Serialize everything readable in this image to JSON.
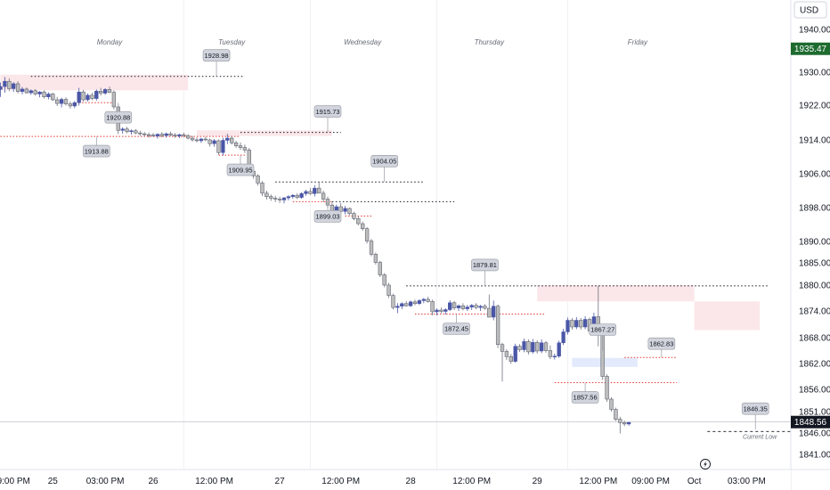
{
  "currency": "USD",
  "colors": {
    "bull": "#4a56a6",
    "bear": "#bdbdbd",
    "red": "#e53935",
    "zone": "#fbe7ea",
    "zoneBlue": "#e3eafc",
    "accent": "#1e6b2f",
    "axisBg": "#ffffff"
  },
  "icons": {
    "flash": "lightning-icon"
  },
  "chart_data": {
    "type": "candlestick",
    "currency": "USD",
    "last_price": "1848.56",
    "session_high_price": "1935.47",
    "y_range": [
      1839,
      1944
    ],
    "y_ticks": [
      "1940.00",
      "1930.00",
      "1922.00",
      "1914.00",
      "1906.00",
      "1898.00",
      "1890.00",
      "1885.00",
      "1880.00",
      "1874.00",
      "1868.00",
      "1862.00",
      "1856.00",
      "1851.00",
      "1846.00",
      "1841.00"
    ],
    "x_ticks": [
      {
        "t": 3,
        "label": "9:00 PM"
      },
      {
        "t": 12,
        "label": "25"
      },
      {
        "t": 24,
        "label": "03:00 PM"
      },
      {
        "t": 35,
        "label": "26"
      },
      {
        "t": 49,
        "label": "12:00 PM"
      },
      {
        "t": 64,
        "label": "27"
      },
      {
        "t": 78,
        "label": "12:00 PM"
      },
      {
        "t": 94,
        "label": "28"
      },
      {
        "t": 108,
        "label": "12:00 PM"
      },
      {
        "t": 123,
        "label": "29"
      },
      {
        "t": 137,
        "label": "12:00 PM"
      },
      {
        "t": 149,
        "label": "09:00 PM"
      },
      {
        "t": 159,
        "label": "Oct"
      },
      {
        "t": 171,
        "label": "03:00 PM"
      }
    ],
    "day_labels": [
      {
        "t": 25,
        "label": "Monday"
      },
      {
        "t": 53,
        "label": "Tuesday"
      },
      {
        "t": 83,
        "label": "Wednesday"
      },
      {
        "t": 112,
        "label": "Thursday"
      },
      {
        "t": 146,
        "label": "Friday"
      }
    ],
    "candles": [
      [
        1925.8,
        1927.5,
        1924.0,
        1926.5
      ],
      [
        1926.5,
        1928.8,
        1925.0,
        1927.8
      ],
      [
        1927.8,
        1928.5,
        1925.4,
        1926.0
      ],
      [
        1926.0,
        1927.6,
        1925.2,
        1927.2
      ],
      [
        1927.2,
        1927.8,
        1924.8,
        1925.3
      ],
      [
        1925.3,
        1926.4,
        1924.6,
        1925.9
      ],
      [
        1925.9,
        1926.3,
        1924.8,
        1925.0
      ],
      [
        1925.0,
        1925.8,
        1924.5,
        1925.5
      ],
      [
        1925.5,
        1925.9,
        1924.3,
        1924.7
      ],
      [
        1924.7,
        1925.4,
        1923.9,
        1925.2
      ],
      [
        1925.2,
        1925.6,
        1923.6,
        1924.0
      ],
      [
        1924.0,
        1925.1,
        1923.4,
        1924.7
      ],
      [
        1924.7,
        1925.0,
        1923.0,
        1923.3
      ],
      [
        1923.3,
        1924.0,
        1921.8,
        1922.4
      ],
      [
        1922.4,
        1923.8,
        1921.5,
        1923.4
      ],
      [
        1923.4,
        1923.9,
        1921.9,
        1922.3
      ],
      [
        1922.3,
        1922.9,
        1921.2,
        1921.8
      ],
      [
        1921.8,
        1923.0,
        1921.3,
        1922.6
      ],
      [
        1922.6,
        1926.2,
        1921.9,
        1925.2
      ],
      [
        1925.2,
        1925.7,
        1922.9,
        1923.3
      ],
      [
        1923.3,
        1924.8,
        1922.9,
        1924.4
      ],
      [
        1924.4,
        1925.0,
        1923.2,
        1923.6
      ],
      [
        1923.6,
        1925.8,
        1923.1,
        1925.4
      ],
      [
        1925.4,
        1926.2,
        1924.3,
        1924.9
      ],
      [
        1924.9,
        1926.1,
        1924.5,
        1925.8
      ],
      [
        1925.8,
        1926.5,
        1924.9,
        1925.1
      ],
      [
        1925.1,
        1925.6,
        1921.0,
        1921.6
      ],
      [
        1921.6,
        1922.2,
        1915.3,
        1916.2
      ],
      [
        1916.2,
        1916.9,
        1915.4,
        1916.5
      ],
      [
        1916.5,
        1917.0,
        1915.5,
        1915.9
      ],
      [
        1915.9,
        1916.4,
        1915.2,
        1916.1
      ],
      [
        1916.1,
        1916.5,
        1915.3,
        1915.6
      ],
      [
        1915.6,
        1916.1,
        1914.9,
        1915.4
      ],
      [
        1915.4,
        1915.8,
        1914.8,
        1915.2
      ],
      [
        1915.2,
        1915.7,
        1914.5,
        1915.1
      ],
      [
        1915.1,
        1915.6,
        1914.7,
        1914.9
      ],
      [
        1914.9,
        1915.5,
        1914.3,
        1915.3
      ],
      [
        1915.3,
        1915.8,
        1914.6,
        1915.0
      ],
      [
        1915.0,
        1915.7,
        1914.5,
        1915.4
      ],
      [
        1915.4,
        1915.9,
        1914.8,
        1915.1
      ],
      [
        1915.1,
        1915.6,
        1914.5,
        1914.9
      ],
      [
        1914.9,
        1915.4,
        1914.4,
        1915.2
      ],
      [
        1915.2,
        1915.7,
        1914.6,
        1915.0
      ],
      [
        1915.0,
        1915.3,
        1914.1,
        1914.4
      ],
      [
        1914.4,
        1914.9,
        1913.6,
        1914.0
      ],
      [
        1914.0,
        1914.6,
        1913.4,
        1913.8
      ],
      [
        1913.8,
        1914.5,
        1913.3,
        1914.2
      ],
      [
        1914.2,
        1914.7,
        1913.7,
        1914.0
      ],
      [
        1914.0,
        1914.3,
        1912.4,
        1913.1
      ],
      [
        1913.1,
        1914.2,
        1912.4,
        1913.8
      ],
      [
        1913.8,
        1914.1,
        1910.5,
        1911.0
      ],
      [
        1911.0,
        1914.5,
        1910.3,
        1913.9
      ],
      [
        1913.9,
        1915.4,
        1913.0,
        1914.4
      ],
      [
        1914.4,
        1914.9,
        1912.9,
        1913.3
      ],
      [
        1913.3,
        1913.8,
        1912.1,
        1912.6
      ],
      [
        1912.6,
        1913.4,
        1911.6,
        1912.2
      ],
      [
        1912.2,
        1912.9,
        1910.9,
        1911.6
      ],
      [
        1911.6,
        1912.1,
        1905.7,
        1906.6
      ],
      [
        1906.6,
        1907.1,
        1904.8,
        1905.5
      ],
      [
        1905.5,
        1905.9,
        1903.2,
        1903.8
      ],
      [
        1903.8,
        1904.3,
        1900.7,
        1901.4
      ],
      [
        1901.4,
        1902.0,
        1899.9,
        1900.6
      ],
      [
        1900.6,
        1901.1,
        1899.6,
        1900.2
      ],
      [
        1900.2,
        1900.8,
        1899.3,
        1900.0
      ],
      [
        1900.0,
        1900.6,
        1899.1,
        1899.8
      ],
      [
        1899.8,
        1900.5,
        1899.0,
        1900.3
      ],
      [
        1900.3,
        1900.9,
        1899.7,
        1900.6
      ],
      [
        1900.6,
        1901.2,
        1900.1,
        1900.9
      ],
      [
        1900.9,
        1901.4,
        1900.0,
        1900.4
      ],
      [
        1900.4,
        1901.6,
        1900.1,
        1901.3
      ],
      [
        1901.3,
        1902.2,
        1900.8,
        1901.8
      ],
      [
        1901.8,
        1902.6,
        1901.0,
        1901.3
      ],
      [
        1901.3,
        1903.3,
        1900.6,
        1902.6
      ],
      [
        1902.6,
        1904.0,
        1901.9,
        1901.4
      ],
      [
        1901.4,
        1902.0,
        1899.3,
        1900.0
      ],
      [
        1900.0,
        1900.6,
        1898.0,
        1898.6
      ],
      [
        1898.6,
        1899.2,
        1896.3,
        1897.0
      ],
      [
        1897.0,
        1898.7,
        1896.5,
        1898.2
      ],
      [
        1898.2,
        1899.1,
        1896.6,
        1897.1
      ],
      [
        1897.1,
        1898.4,
        1896.4,
        1897.8
      ],
      [
        1897.8,
        1898.0,
        1896.2,
        1896.6
      ],
      [
        1896.6,
        1897.0,
        1895.0,
        1895.4
      ],
      [
        1895.4,
        1895.9,
        1893.8,
        1894.2
      ],
      [
        1894.2,
        1894.7,
        1892.5,
        1893.0
      ],
      [
        1893.0,
        1893.4,
        1889.5,
        1890.1
      ],
      [
        1890.1,
        1890.6,
        1886.5,
        1887.0
      ],
      [
        1887.0,
        1887.4,
        1884.6,
        1885.1
      ],
      [
        1885.1,
        1885.5,
        1881.8,
        1882.3
      ],
      [
        1882.3,
        1882.7,
        1879.5,
        1880.0
      ],
      [
        1880.0,
        1880.5,
        1877.0,
        1877.6
      ],
      [
        1877.6,
        1878.0,
        1874.3,
        1874.8
      ],
      [
        1874.8,
        1875.8,
        1873.5,
        1875.1
      ],
      [
        1875.1,
        1876.0,
        1874.4,
        1875.7
      ],
      [
        1875.7,
        1876.3,
        1875.0,
        1875.2
      ],
      [
        1875.2,
        1876.4,
        1874.9,
        1876.1
      ],
      [
        1876.1,
        1876.6,
        1875.3,
        1875.7
      ],
      [
        1875.7,
        1876.7,
        1875.4,
        1876.4
      ],
      [
        1876.4,
        1877.0,
        1875.8,
        1876.7
      ],
      [
        1876.7,
        1877.3,
        1875.9,
        1876.2
      ],
      [
        1876.2,
        1876.6,
        1873.0,
        1873.8
      ],
      [
        1873.8,
        1874.6,
        1873.0,
        1874.2
      ],
      [
        1874.2,
        1874.8,
        1873.5,
        1873.9
      ],
      [
        1873.9,
        1874.6,
        1873.2,
        1874.3
      ],
      [
        1874.3,
        1876.5,
        1874.0,
        1875.9
      ],
      [
        1875.9,
        1876.3,
        1874.2,
        1874.7
      ],
      [
        1874.7,
        1875.5,
        1874.0,
        1875.2
      ],
      [
        1875.2,
        1875.8,
        1874.1,
        1874.5
      ],
      [
        1874.5,
        1875.4,
        1874.0,
        1874.9
      ],
      [
        1874.9,
        1875.6,
        1874.2,
        1875.3
      ],
      [
        1875.3,
        1875.8,
        1874.4,
        1874.8
      ],
      [
        1874.8,
        1875.4,
        1874.0,
        1875.1
      ],
      [
        1875.1,
        1875.6,
        1874.3,
        1874.6
      ],
      [
        1874.6,
        1877.8,
        1873.0,
        1872.6
      ],
      [
        1872.6,
        1876.4,
        1871.9,
        1875.1
      ],
      [
        1875.1,
        1875.5,
        1865.6,
        1866.4
      ],
      [
        1866.4,
        1866.8,
        1857.8,
        1864.8
      ],
      [
        1864.8,
        1865.3,
        1862.8,
        1863.6
      ],
      [
        1863.6,
        1864.2,
        1861.9,
        1862.5
      ],
      [
        1862.5,
        1866.6,
        1862.2,
        1866.0
      ],
      [
        1866.0,
        1866.5,
        1864.7,
        1865.2
      ],
      [
        1865.2,
        1867.8,
        1864.6,
        1867.1
      ],
      [
        1867.1,
        1867.6,
        1864.1,
        1864.7
      ],
      [
        1864.7,
        1867.7,
        1864.3,
        1866.9
      ],
      [
        1866.9,
        1867.4,
        1864.3,
        1864.9
      ],
      [
        1864.9,
        1867.6,
        1864.4,
        1866.8
      ],
      [
        1866.8,
        1867.2,
        1864.5,
        1865.0
      ],
      [
        1865.0,
        1866.2,
        1863.0,
        1863.6
      ],
      [
        1863.6,
        1864.3,
        1862.9,
        1863.7
      ],
      [
        1863.7,
        1867.3,
        1863.3,
        1866.8
      ],
      [
        1866.8,
        1870.0,
        1866.3,
        1869.3
      ],
      [
        1869.3,
        1872.5,
        1868.7,
        1871.9
      ],
      [
        1871.9,
        1872.4,
        1869.8,
        1870.4
      ],
      [
        1870.4,
        1872.6,
        1869.9,
        1871.9
      ],
      [
        1871.9,
        1872.4,
        1869.8,
        1870.4
      ],
      [
        1870.4,
        1872.8,
        1869.9,
        1872.1
      ],
      [
        1872.1,
        1872.5,
        1869.1,
        1869.5
      ],
      [
        1869.5,
        1873.6,
        1869.0,
        1872.7
      ],
      [
        1872.7,
        1879.8,
        1866.0,
        1870.4
      ],
      [
        1870.4,
        1870.9,
        1858.2,
        1859.0
      ],
      [
        1859.0,
        1859.5,
        1853.2,
        1853.8
      ],
      [
        1853.8,
        1854.2,
        1851.0,
        1851.5
      ],
      [
        1851.5,
        1851.9,
        1848.8,
        1849.2
      ],
      [
        1849.2,
        1849.8,
        1845.9,
        1848.4
      ],
      [
        1848.4,
        1848.9,
        1847.6,
        1848.1
      ],
      [
        1848.1,
        1848.7,
        1847.7,
        1848.56
      ]
    ],
    "horizontal_levels": [
      {
        "price": 1928.98,
        "style": "dotted",
        "t0": 7,
        "t1": 56
      },
      {
        "price": 1922.6,
        "style": "red",
        "t0": 18,
        "t1": 26
      },
      {
        "price": 1914.8,
        "style": "red",
        "t0": 0,
        "t1": 55
      },
      {
        "price": 1915.73,
        "style": "dotted",
        "t0": 55,
        "t1": 78
      },
      {
        "price": 1910.4,
        "style": "red",
        "t0": 50,
        "t1": 56
      },
      {
        "price": 1904.05,
        "style": "dotted",
        "t0": 63,
        "t1": 97
      },
      {
        "price": 1899.4,
        "style": "red",
        "t0": 67,
        "t1": 76
      },
      {
        "price": 1899.4,
        "style": "dotted",
        "t0": 76,
        "t1": 104
      },
      {
        "price": 1896.0,
        "style": "red",
        "t0": 79,
        "t1": 85
      },
      {
        "price": 1879.81,
        "style": "dotted",
        "t0": 93,
        "t1": 176
      },
      {
        "price": 1873.3,
        "style": "red",
        "t0": 95,
        "t1": 125
      },
      {
        "price": 1863.4,
        "style": "red",
        "t0": 143,
        "t1": 155
      },
      {
        "price": 1857.56,
        "style": "red",
        "t0": 127,
        "t1": 155
      },
      {
        "price": 1846.35,
        "style": "dashed",
        "t0": 162,
        "t1": 183
      }
    ],
    "zones": [
      {
        "t0": 0,
        "t1": 43,
        "p_top": 1929.4,
        "p_bot": 1925.6,
        "color": "zone"
      },
      {
        "t0": 45,
        "t1": 76,
        "p_top": 1916.2,
        "p_bot": 1914.9,
        "color": "zone"
      },
      {
        "t0": 123,
        "t1": 159,
        "p_top": 1880.0,
        "p_bot": 1876.2,
        "color": "zone"
      },
      {
        "t0": 159,
        "t1": 174,
        "p_top": 1876.2,
        "p_bot": 1869.7,
        "color": "zone"
      },
      {
        "t0": 131,
        "t1": 146,
        "p_top": 1863.3,
        "p_bot": 1861.2,
        "color": "zoneBlue"
      }
    ],
    "price_labels": [
      {
        "t": 49.5,
        "price": 1928.98,
        "text": "1928.98",
        "dir": "up"
      },
      {
        "t": 27,
        "price": 1922.6,
        "text": "1920.88",
        "dir": "down"
      },
      {
        "t": 22,
        "price": 1914.8,
        "text": "1913.88",
        "dir": "down"
      },
      {
        "t": 75,
        "price": 1915.73,
        "text": "1915.73",
        "dir": "up"
      },
      {
        "t": 55,
        "price": 1910.4,
        "text": "1909.95",
        "dir": "down"
      },
      {
        "t": 88,
        "price": 1904.05,
        "text": "1904.05",
        "dir": "up"
      },
      {
        "t": 75,
        "price": 1899.4,
        "text": "1899.03",
        "dir": "down"
      },
      {
        "t": 111,
        "price": 1879.81,
        "text": "1879.81",
        "dir": "up"
      },
      {
        "t": 104.5,
        "price": 1873.3,
        "text": "1872.45",
        "dir": "down"
      },
      {
        "t": 138,
        "price": 1865.0,
        "text": "1867.27",
        "dir": "up"
      },
      {
        "t": 151.5,
        "price": 1863.4,
        "text": "1862.83",
        "dir": "upinline"
      },
      {
        "t": 134,
        "price": 1857.56,
        "text": "1857.56",
        "dir": "down"
      },
      {
        "t": 173,
        "price": 1846.8,
        "text": "1846.35",
        "dir": "up"
      }
    ],
    "annotations": [
      {
        "text": "Current Low",
        "t": 174,
        "price": 1846.35
      }
    ]
  }
}
